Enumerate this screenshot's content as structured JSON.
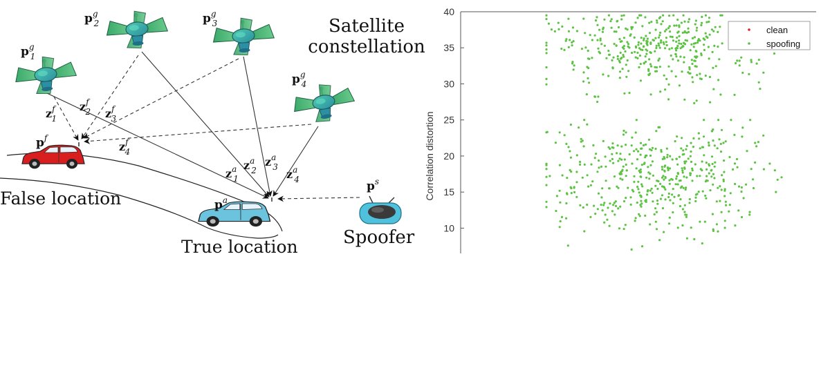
{
  "diagram": {
    "title_line1": "Satellite",
    "title_line2": "constellation",
    "false_location_label": "False location",
    "true_location_label": "True location",
    "spoofer_label": "Spoofer",
    "satellites": [
      {
        "base": "p",
        "sup": "g",
        "sub": "1"
      },
      {
        "base": "p",
        "sup": "g",
        "sub": "2"
      },
      {
        "base": "p",
        "sup": "g",
        "sub": "3"
      },
      {
        "base": "p",
        "sup": "g",
        "sub": "4"
      }
    ],
    "fake_measurements": [
      {
        "base": "z",
        "sup": "f",
        "sub": "1"
      },
      {
        "base": "z",
        "sup": "f",
        "sub": "2"
      },
      {
        "base": "z",
        "sup": "f",
        "sub": "3"
      },
      {
        "base": "z",
        "sup": "f",
        "sub": "4"
      }
    ],
    "true_measurements": [
      {
        "base": "z",
        "sup": "a",
        "sub": "1"
      },
      {
        "base": "z",
        "sup": "a",
        "sub": "2"
      },
      {
        "base": "z",
        "sup": "a",
        "sub": "3"
      },
      {
        "base": "z",
        "sup": "a",
        "sub": "4"
      }
    ],
    "false_position": {
      "base": "p",
      "sup": "f"
    },
    "true_position": {
      "base": "p",
      "sup": "a"
    },
    "spoofer_position": {
      "base": "p",
      "sup": "s"
    },
    "colors": {
      "satellite_body": "#3fb39d",
      "satellite_panel": "#2e9a63",
      "false_car": "#d81e1e",
      "true_car": "#6cc3dd",
      "spoofer": "#4fc1dd"
    }
  },
  "chart_data": {
    "type": "scatter",
    "ylabel": "Correlation distortion",
    "xlabel": "",
    "title": "",
    "ylim": [
      6.5,
      40
    ],
    "yticks": [
      10,
      15,
      20,
      25,
      30,
      35,
      40
    ],
    "legend": {
      "position": "top-right",
      "entries": [
        {
          "name": "clean",
          "color": "#e0202a"
        },
        {
          "name": "spoofing",
          "color": "#5ec245"
        }
      ]
    },
    "series": [
      {
        "name": "clean",
        "color": "#e0202a",
        "points": []
      },
      {
        "name": "spoofing",
        "color": "#5ec245",
        "distribution": {
          "clusters": [
            {
              "y_range": [
                27,
                39.5
              ],
              "y_mode": 35.5,
              "x_spread": "wide",
              "approx_count": 420
            },
            {
              "y_range": [
                6.5,
                25
              ],
              "y_mode": 17,
              "x_spread": "wide",
              "approx_count": 480
            }
          ]
        }
      }
    ]
  }
}
